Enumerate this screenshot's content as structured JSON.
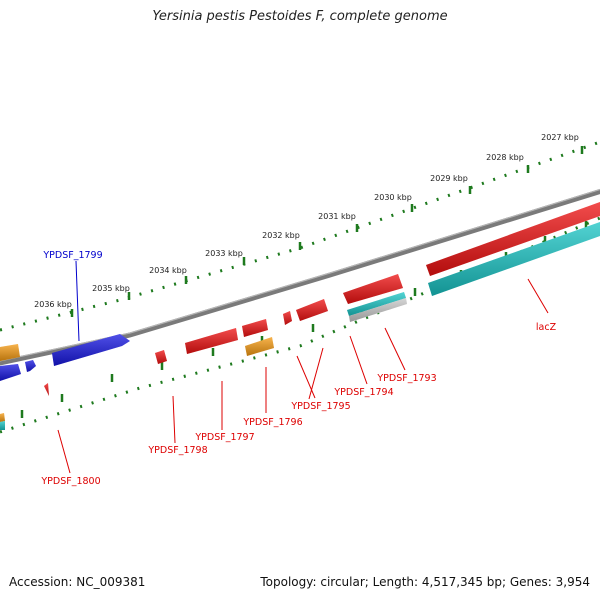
{
  "title": "Yersinia pestis Pestoides F, complete genome",
  "footer": {
    "accession": "Accession: NC_009381",
    "summary": "Topology: circular; Length: 4,517,345 bp; Genes: 3,954"
  },
  "colors": {
    "backbone": "#7a7a7a",
    "ruler": "#1e7a1e",
    "gene_red": "#ee1111",
    "gene_blue": "#1616e0",
    "gene_cyan": "#19c4c4",
    "gene_orange": "#f59a12",
    "gene_gray": "#c8c8c8",
    "label_red": "#dd0000",
    "label_blue": "#0000cc"
  },
  "outer_ruler": [
    "2027 kbp",
    "2028 kbp",
    "2029 kbp",
    "2030 kbp",
    "2031 kbp",
    "2032 kbp",
    "2033 kbp",
    "2034 kbp",
    "2035 kbp",
    "2036 kbp"
  ],
  "gene_labels": [
    {
      "id": "lacz",
      "text": "lacZ",
      "color": "red"
    },
    {
      "id": "ypdsf-1793",
      "text": "YPDSF_1793",
      "color": "red"
    },
    {
      "id": "ypdsf-1794",
      "text": "YPDSF_1794",
      "color": "red"
    },
    {
      "id": "ypdsf-1795",
      "text": "YPDSF_1795",
      "color": "red"
    },
    {
      "id": "ypdsf-1796",
      "text": "YPDSF_1796",
      "color": "red"
    },
    {
      "id": "ypdsf-1797",
      "text": "YPDSF_1797",
      "color": "red"
    },
    {
      "id": "ypdsf-1798",
      "text": "YPDSF_1798",
      "color": "red"
    },
    {
      "id": "ypdsf-1799",
      "text": "YPDSF_1799",
      "color": "blue"
    },
    {
      "id": "ypdsf-1800",
      "text": "YPDSF_1800",
      "color": "red"
    }
  ]
}
